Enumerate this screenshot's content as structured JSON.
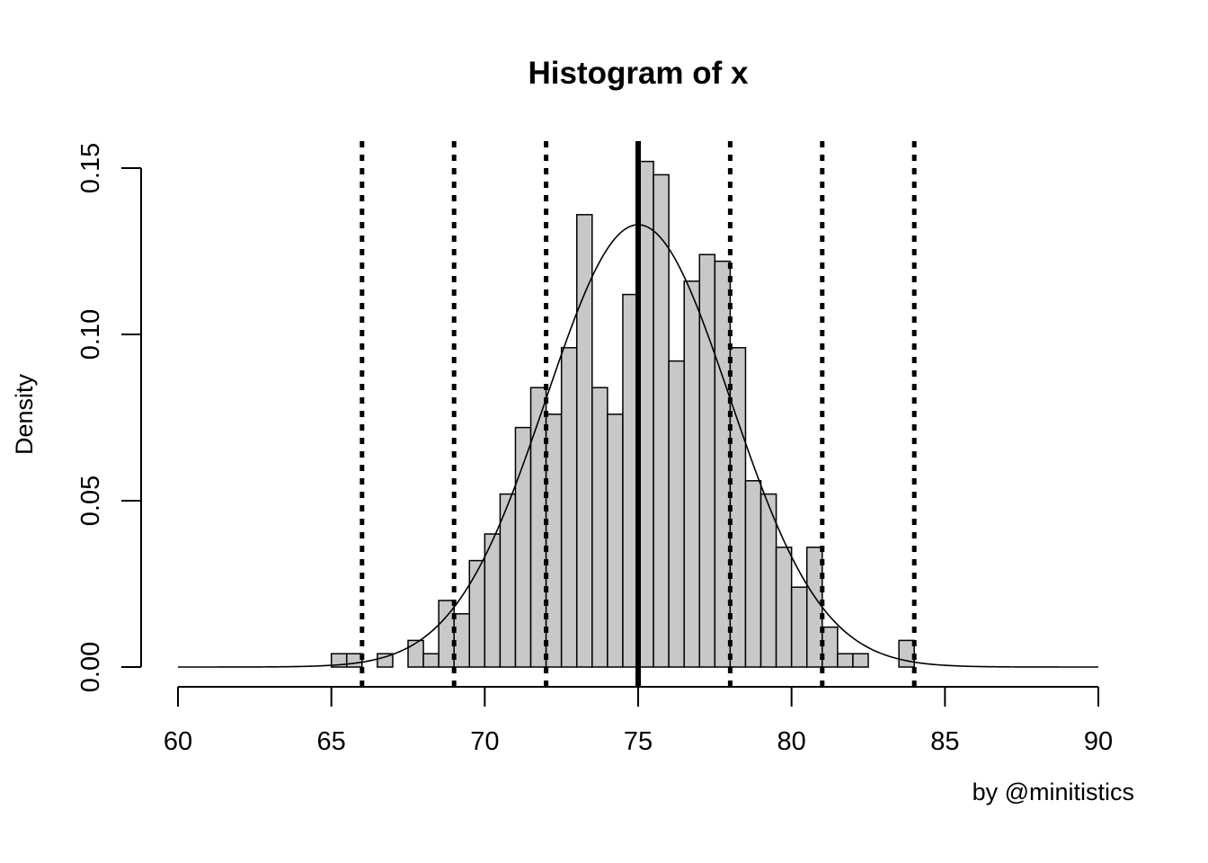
{
  "chart_data": {
    "type": "bar",
    "title": "Histogram of x",
    "xlabel": "",
    "ylabel": "Density",
    "caption": "by @minitistics",
    "xlim": [
      60,
      90
    ],
    "ylim": [
      0,
      0.15
    ],
    "x_ticks": [
      60,
      65,
      70,
      75,
      80,
      85,
      90
    ],
    "y_ticks": [
      "0.00",
      "0.05",
      "0.10",
      "0.15"
    ],
    "grid": false,
    "bin_width": 0.5,
    "bins": [
      {
        "start": 65.0,
        "density": 0.004
      },
      {
        "start": 65.5,
        "density": 0.004
      },
      {
        "start": 66.0,
        "density": 0.0
      },
      {
        "start": 66.5,
        "density": 0.004
      },
      {
        "start": 67.0,
        "density": 0.0
      },
      {
        "start": 67.5,
        "density": 0.008
      },
      {
        "start": 68.0,
        "density": 0.004
      },
      {
        "start": 68.5,
        "density": 0.02
      },
      {
        "start": 69.0,
        "density": 0.016
      },
      {
        "start": 69.5,
        "density": 0.032
      },
      {
        "start": 70.0,
        "density": 0.04
      },
      {
        "start": 70.5,
        "density": 0.052
      },
      {
        "start": 71.0,
        "density": 0.072
      },
      {
        "start": 71.5,
        "density": 0.084
      },
      {
        "start": 72.0,
        "density": 0.076
      },
      {
        "start": 72.5,
        "density": 0.096
      },
      {
        "start": 73.0,
        "density": 0.136
      },
      {
        "start": 73.5,
        "density": 0.084
      },
      {
        "start": 74.0,
        "density": 0.076
      },
      {
        "start": 74.5,
        "density": 0.112
      },
      {
        "start": 75.0,
        "density": 0.152
      },
      {
        "start": 75.5,
        "density": 0.148
      },
      {
        "start": 76.0,
        "density": 0.092
      },
      {
        "start": 76.5,
        "density": 0.116
      },
      {
        "start": 77.0,
        "density": 0.124
      },
      {
        "start": 77.5,
        "density": 0.122
      },
      {
        "start": 78.0,
        "density": 0.096
      },
      {
        "start": 78.5,
        "density": 0.056
      },
      {
        "start": 79.0,
        "density": 0.052
      },
      {
        "start": 79.5,
        "density": 0.036
      },
      {
        "start": 80.0,
        "density": 0.024
      },
      {
        "start": 80.5,
        "density": 0.036
      },
      {
        "start": 81.0,
        "density": 0.012
      },
      {
        "start": 81.5,
        "density": 0.004
      },
      {
        "start": 82.0,
        "density": 0.004
      },
      {
        "start": 82.5,
        "density": 0.0
      },
      {
        "start": 83.0,
        "density": 0.0
      },
      {
        "start": 83.5,
        "density": 0.008
      }
    ],
    "normal_curve": {
      "mean": 75,
      "sd": 3,
      "from": 60,
      "to": 90
    },
    "mean_line": 75,
    "sd_lines": [
      66,
      69,
      72,
      78,
      81,
      84
    ],
    "colors": {
      "bar_fill": "#c8c8c8",
      "bar_stroke": "#000000",
      "lines": "#000000"
    }
  }
}
